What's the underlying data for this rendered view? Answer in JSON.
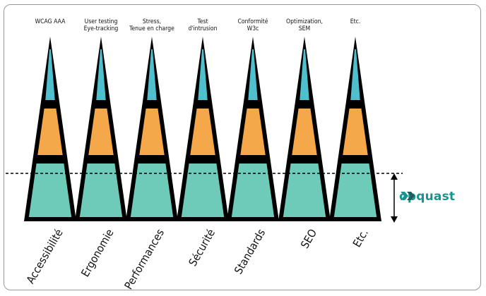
{
  "colors": {
    "top": "#4fbfcc",
    "middle": "#f5a84a",
    "bottom": "#6fcbb9",
    "stroke": "#000000",
    "brand": "#16968f",
    "brand_dark": "#1f5d5a"
  },
  "pillars": [
    {
      "top_label": [
        "WCAG AAA"
      ],
      "bottom_label": "Accessibilité"
    },
    {
      "top_label": [
        "User testing",
        "Eye-tracking"
      ],
      "bottom_label": "Ergonomie"
    },
    {
      "top_label": [
        "Stress,",
        "Tenue en charge"
      ],
      "bottom_label": "Performances"
    },
    {
      "top_label": [
        "Test",
        "d'intrusion"
      ],
      "bottom_label": "Sécurité"
    },
    {
      "top_label": [
        "Conformité",
        "W3c"
      ],
      "bottom_label": "Standards"
    },
    {
      "top_label": [
        "Optimization,",
        "SEM"
      ],
      "bottom_label": "SEO"
    },
    {
      "top_label": [
        "Etc."
      ],
      "bottom_label": "Etc."
    }
  ],
  "logo": {
    "text": "opquast",
    "icon": "opquast-logo-icon"
  },
  "arrow": "double-headed-vertical-arrow",
  "threshold": "dashed-threshold-line"
}
